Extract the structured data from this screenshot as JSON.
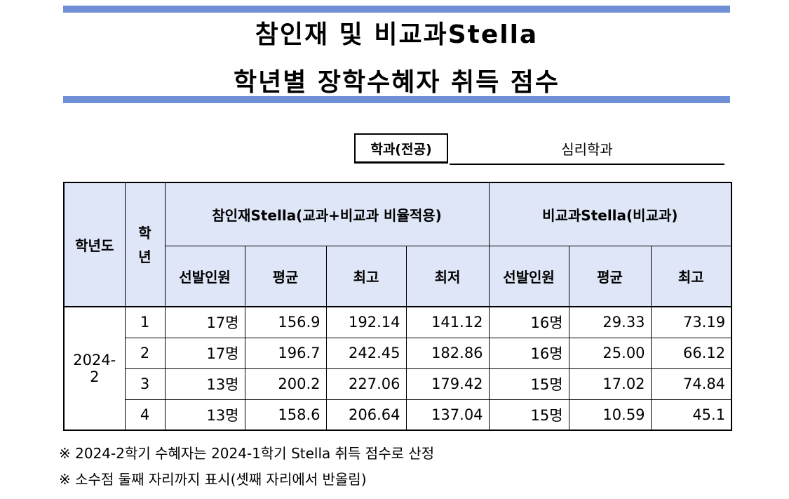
{
  "header": {
    "title_line1": "참인재 및 비교과Stella",
    "title_line2": "학년별 장학수혜자 취득 점수"
  },
  "department": {
    "label": "학과(전공)",
    "value": "심리학과"
  },
  "table": {
    "year_header": "학년도",
    "grade_header": "학년",
    "group_headers": [
      "참인재Stella(교과+비교과 비율적용)",
      "비교과Stella(비교과)"
    ],
    "sub_headers": [
      "선발인원",
      "평균",
      "최고",
      "최저",
      "선발인원",
      "평균",
      "최고"
    ],
    "year": "2024-2",
    "rows": [
      [
        "1",
        "17명",
        "156.9",
        "192.14",
        "141.12",
        "16명",
        "29.33",
        "73.19"
      ],
      [
        "2",
        "17명",
        "196.7",
        "242.45",
        "182.86",
        "16명",
        "25.00",
        "66.12"
      ],
      [
        "3",
        "13명",
        "200.2",
        "227.06",
        "179.42",
        "15명",
        "17.02",
        "74.84"
      ],
      [
        "4",
        "13명",
        "158.6",
        "206.64",
        "137.04",
        "15명",
        "10.59",
        "45.1"
      ]
    ]
  },
  "notes": [
    "※ 2024-2학기 수혜자는 2024-1학기 Stella 취득 점수로 산정",
    "※ 소수점 둘째 자리까지 표시(셋째 자리에서 반올림)"
  ]
}
